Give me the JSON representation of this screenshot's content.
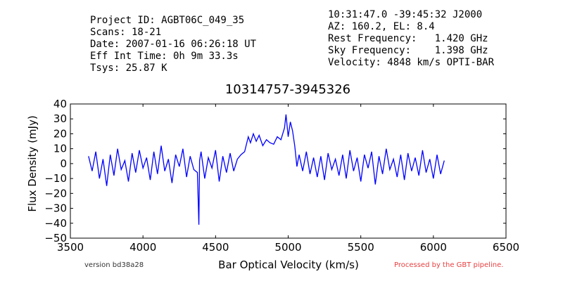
{
  "header": {
    "left": [
      "Project ID: AGBT06C_049_35",
      "Scans: 18-21",
      "Date: 2007-01-16 06:26:18 UT",
      "Eff Int Time: 0h 9m 33.3s",
      "Tsys: 25.87 K"
    ],
    "right": [
      "10:31:47.0 -39:45:32 J2000",
      "AZ: 160.2, EL: 8.4",
      "Rest Frequency:   1.420 GHz",
      "Sky Frequency:    1.398 GHz",
      "Velocity: 4848 km/s OPTI-BAR"
    ]
  },
  "footer": {
    "version": "version bd38a28",
    "pipeline": "Processed by the GBT pipeline."
  },
  "colors": {
    "line": "#0000ff",
    "pipeline_text": "#e84040",
    "version_text": "#333333"
  },
  "chart_data": {
    "type": "line",
    "title": "10314757-3945326",
    "xlabel": "Bar Optical Velocity (km/s)",
    "ylabel": "Flux Density (mJy)",
    "xlim": [
      3500,
      6500
    ],
    "ylim": [
      -50,
      40
    ],
    "xticks": [
      3500,
      4000,
      4500,
      5000,
      5500,
      6000,
      6500
    ],
    "yticks": [
      -50,
      -40,
      -30,
      -20,
      -10,
      0,
      10,
      20,
      30,
      40
    ],
    "grid": false,
    "series": [
      {
        "x": [
          3625,
          3650,
          3675,
          3700,
          3725,
          3750,
          3775,
          3800,
          3825,
          3850,
          3875,
          3900,
          3925,
          3950,
          3975,
          4000,
          4025,
          4050,
          4075,
          4100,
          4125,
          4150,
          4175,
          4200,
          4225,
          4250,
          4275,
          4300,
          4325,
          4350,
          4375,
          4385,
          4390,
          4400,
          4425,
          4450,
          4475,
          4500,
          4525,
          4550,
          4575,
          4600,
          4625,
          4650,
          4675,
          4700,
          4725,
          4740,
          4760,
          4780,
          4800,
          4825,
          4850,
          4875,
          4900,
          4925,
          4950,
          4975,
          4985,
          5000,
          5015,
          5030,
          5045,
          5060,
          5075,
          5100,
          5125,
          5150,
          5175,
          5200,
          5225,
          5250,
          5275,
          5300,
          5325,
          5350,
          5375,
          5400,
          5425,
          5450,
          5475,
          5500,
          5525,
          5550,
          5575,
          5600,
          5625,
          5650,
          5675,
          5700,
          5725,
          5750,
          5775,
          5800,
          5825,
          5850,
          5875,
          5900,
          5925,
          5950,
          5975,
          6000,
          6025,
          6050,
          6075
        ],
        "y": [
          5,
          -5,
          8,
          -10,
          3,
          -15,
          6,
          -8,
          10,
          -4,
          2,
          -12,
          7,
          -6,
          9,
          -3,
          4,
          -11,
          8,
          -7,
          12,
          -5,
          3,
          -13,
          6,
          -2,
          10,
          -9,
          5,
          -4,
          -6,
          -41,
          2,
          8,
          -10,
          4,
          -3,
          9,
          -12,
          5,
          -6,
          7,
          -5,
          3,
          6,
          8,
          18,
          14,
          20,
          15,
          19,
          12,
          16,
          14,
          13,
          18,
          16,
          24,
          33,
          18,
          28,
          22,
          12,
          -2,
          6,
          -5,
          8,
          -7,
          4,
          -9,
          5,
          -11,
          7,
          -4,
          3,
          -8,
          6,
          -10,
          9,
          -5,
          4,
          -12,
          6,
          -3,
          8,
          -14,
          5,
          -7,
          10,
          -4,
          3,
          -9,
          6,
          -11,
          7,
          -5,
          4,
          -8,
          9,
          -6,
          3,
          -10,
          6,
          -7,
          2
        ]
      }
    ]
  }
}
